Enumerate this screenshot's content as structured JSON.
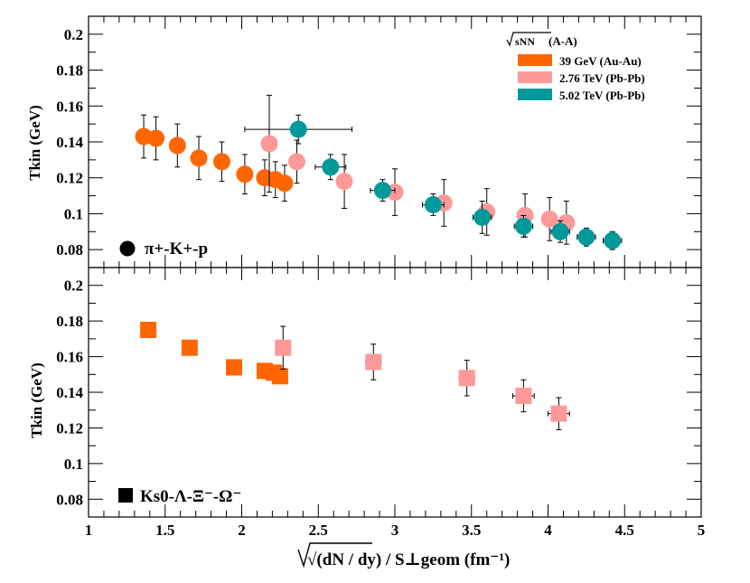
{
  "chart_data": {
    "type": "scatter",
    "xlabel": "√(dN / dy) / S⊥geom (fm⁻¹)",
    "xlim": [
      1,
      5
    ],
    "x_ticks": [
      "1",
      "1.5",
      "2",
      "2.5",
      "3",
      "3.5",
      "4",
      "4.5",
      "5"
    ],
    "legend_header": {
      "sqrt": "sNN",
      "text": " (A-A)"
    },
    "legend": [
      {
        "label": "39 GeV (Au-Au)",
        "color": "#ff6600"
      },
      {
        "label": "2.76 TeV (Pb-Pb)",
        "color": "#ff9999"
      },
      {
        "label": "5.02 TeV (Pb-Pb)",
        "color": "#009999"
      }
    ],
    "panels": [
      {
        "id": "top",
        "ylabel": "Tkin (GeV)",
        "ylim": [
          0.07,
          0.21
        ],
        "y_ticks": [
          "0.08",
          "0.1",
          "0.12",
          "0.14",
          "0.16",
          "0.18",
          "0.2"
        ],
        "marker": "circle",
        "tag": "π+-K+-p",
        "series": [
          {
            "name": "39 GeV (Au-Au)",
            "color": "#ff6600",
            "points": [
              {
                "x": 1.36,
                "y": 0.143,
                "xerr": 0.0,
                "yerr": 0.012
              },
              {
                "x": 1.44,
                "y": 0.142,
                "xerr": 0.0,
                "yerr": 0.012
              },
              {
                "x": 1.58,
                "y": 0.138,
                "xerr": 0.0,
                "yerr": 0.012
              },
              {
                "x": 1.72,
                "y": 0.131,
                "xerr": 0.0,
                "yerr": 0.012
              },
              {
                "x": 1.87,
                "y": 0.129,
                "xerr": 0.0,
                "yerr": 0.011
              },
              {
                "x": 2.02,
                "y": 0.122,
                "xerr": 0.0,
                "yerr": 0.011
              },
              {
                "x": 2.15,
                "y": 0.12,
                "xerr": 0.0,
                "yerr": 0.01
              },
              {
                "x": 2.22,
                "y": 0.119,
                "xerr": 0.0,
                "yerr": 0.01
              },
              {
                "x": 2.28,
                "y": 0.117,
                "xerr": 0.0,
                "yerr": 0.01
              }
            ]
          },
          {
            "name": "2.76 TeV (Pb-Pb)",
            "color": "#ff9999",
            "points": [
              {
                "x": 2.18,
                "y": 0.139,
                "xerr": 0.0,
                "yerr": 0.027
              },
              {
                "x": 2.36,
                "y": 0.129,
                "xerr": 0.0,
                "yerr": 0.012
              },
              {
                "x": 2.67,
                "y": 0.118,
                "xerr": 0.0,
                "yerr": 0.015
              },
              {
                "x": 3.0,
                "y": 0.112,
                "xerr": 0.05,
                "yerr": 0.013
              },
              {
                "x": 3.32,
                "y": 0.106,
                "xerr": 0.05,
                "yerr": 0.013
              },
              {
                "x": 3.6,
                "y": 0.101,
                "xerr": 0.04,
                "yerr": 0.013
              },
              {
                "x": 3.85,
                "y": 0.099,
                "xerr": 0.05,
                "yerr": 0.012
              },
              {
                "x": 4.01,
                "y": 0.097,
                "xerr": 0.04,
                "yerr": 0.012
              },
              {
                "x": 4.12,
                "y": 0.095,
                "xerr": 0.05,
                "yerr": 0.012
              }
            ]
          },
          {
            "name": "5.02 TeV (Pb-Pb)",
            "color": "#009999",
            "points": [
              {
                "x": 2.37,
                "y": 0.147,
                "xerr": 0.35,
                "yerr": 0.008
              },
              {
                "x": 2.58,
                "y": 0.126,
                "xerr": 0.1,
                "yerr": 0.007
              },
              {
                "x": 2.92,
                "y": 0.113,
                "xerr": 0.08,
                "yerr": 0.006
              },
              {
                "x": 3.25,
                "y": 0.105,
                "xerr": 0.07,
                "yerr": 0.006
              },
              {
                "x": 3.57,
                "y": 0.098,
                "xerr": 0.06,
                "yerr": 0.009
              },
              {
                "x": 3.84,
                "y": 0.093,
                "xerr": 0.06,
                "yerr": 0.006
              },
              {
                "x": 4.08,
                "y": 0.09,
                "xerr": 0.06,
                "yerr": 0.006
              },
              {
                "x": 4.25,
                "y": 0.087,
                "xerr": 0.06,
                "yerr": 0.005
              },
              {
                "x": 4.42,
                "y": 0.085,
                "xerr": 0.06,
                "yerr": 0.005
              }
            ]
          }
        ]
      },
      {
        "id": "bottom",
        "ylabel": "Tkin (GeV)",
        "ylim": [
          0.07,
          0.21
        ],
        "y_ticks": [
          "0.08",
          "0.1",
          "0.12",
          "0.14",
          "0.16",
          "0.18",
          "0.2"
        ],
        "marker": "square",
        "tag": "Ks0-Λ-Ξ⁻-Ω⁻",
        "series": [
          {
            "name": "39 GeV (Au-Au)",
            "color": "#ff6600",
            "points": [
              {
                "x": 1.39,
                "y": 0.175,
                "xerr": 0.0,
                "yerr": 0.0
              },
              {
                "x": 1.66,
                "y": 0.165,
                "xerr": 0.0,
                "yerr": 0.0
              },
              {
                "x": 1.95,
                "y": 0.154,
                "xerr": 0.0,
                "yerr": 0.0
              },
              {
                "x": 2.15,
                "y": 0.152,
                "xerr": 0.0,
                "yerr": 0.0
              },
              {
                "x": 2.21,
                "y": 0.151,
                "xerr": 0.0,
                "yerr": 0.0
              },
              {
                "x": 2.25,
                "y": 0.149,
                "xerr": 0.0,
                "yerr": 0.004
              }
            ]
          },
          {
            "name": "2.76 TeV (Pb-Pb)",
            "color": "#ff9999",
            "points": [
              {
                "x": 2.27,
                "y": 0.165,
                "xerr": 0.0,
                "yerr": 0.012
              },
              {
                "x": 2.86,
                "y": 0.157,
                "xerr": 0.05,
                "yerr": 0.01
              },
              {
                "x": 3.47,
                "y": 0.148,
                "xerr": 0.05,
                "yerr": 0.01
              },
              {
                "x": 3.84,
                "y": 0.138,
                "xerr": 0.07,
                "yerr": 0.009
              },
              {
                "x": 4.07,
                "y": 0.128,
                "xerr": 0.07,
                "yerr": 0.009
              }
            ]
          }
        ]
      }
    ]
  }
}
